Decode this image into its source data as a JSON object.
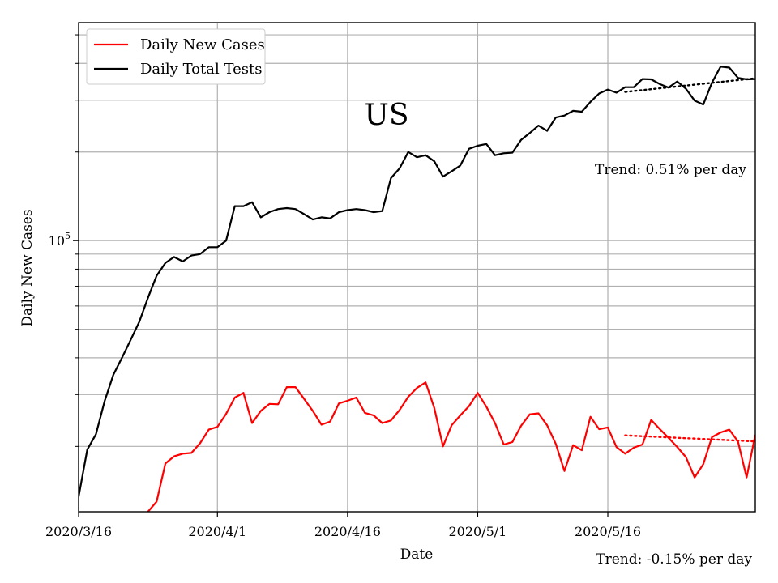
{
  "chart_data": {
    "type": "line",
    "title": "US",
    "xlabel": "Date",
    "ylabel": "Daily New Cases",
    "yscale": "log",
    "ylim": [
      12000,
      550000
    ],
    "x_ticks": [
      "2020/3/16",
      "2020/4/1",
      "2020/4/16",
      "2020/5/1",
      "2020/5/16"
    ],
    "y_tick_label": {
      "base": "10",
      "exp": "5",
      "value": 100000
    },
    "grid": true,
    "legend_position": "top-left",
    "x_start_day": 0,
    "x_end_day": 78,
    "series": [
      {
        "name": "Daily New Cases",
        "color": "#ff0000",
        "x": [
          8,
          9,
          10,
          11,
          12,
          13,
          14,
          15,
          16,
          17,
          18,
          19,
          20,
          21,
          22,
          23,
          24,
          25,
          26,
          27,
          28,
          29,
          30,
          31,
          32,
          33,
          34,
          35,
          36,
          37,
          38,
          39,
          40,
          41,
          42,
          43,
          44,
          45,
          46,
          47,
          48,
          49,
          50,
          51,
          52,
          53,
          54,
          55,
          56,
          57,
          58,
          59,
          60,
          61,
          62,
          63,
          64,
          65,
          66,
          67,
          68,
          69,
          70,
          71,
          72,
          73,
          74,
          75,
          76,
          77,
          78
        ],
        "y": [
          12000,
          13000,
          17500,
          18500,
          18900,
          19000,
          20500,
          22800,
          23300,
          25800,
          29300,
          30400,
          24000,
          26400,
          27900,
          27800,
          31800,
          31800,
          29000,
          26400,
          23700,
          24300,
          28000,
          28600,
          29300,
          26000,
          25500,
          24000,
          24500,
          26600,
          29500,
          31600,
          33000,
          27000,
          20000,
          23600,
          25500,
          27400,
          30400,
          27300,
          24000,
          20300,
          20700,
          23500,
          25700,
          25900,
          23600,
          20400,
          16500,
          20200,
          19400,
          25200,
          22900,
          23200,
          19900,
          18900,
          19800,
          20300,
          24600,
          22900,
          21400,
          19900,
          18400,
          15700,
          17400,
          21500,
          22300,
          22800,
          20800,
          15700,
          21900
        ]
      },
      {
        "name": "Daily Total Tests",
        "color": "#000000",
        "x": [
          0,
          1,
          2,
          3,
          4,
          5,
          6,
          7,
          8,
          9,
          10,
          11,
          12,
          13,
          14,
          15,
          16,
          17,
          18,
          19,
          20,
          21,
          22,
          23,
          24,
          25,
          26,
          27,
          28,
          29,
          30,
          31,
          32,
          33,
          34,
          35,
          36,
          37,
          38,
          39,
          40,
          41,
          42,
          43,
          44,
          45,
          46,
          47,
          48,
          49,
          50,
          51,
          52,
          53,
          54,
          55,
          56,
          57,
          58,
          59,
          60,
          61,
          62,
          63,
          64,
          65,
          66,
          67,
          68,
          69,
          70,
          71,
          72,
          73,
          74,
          75,
          76,
          77,
          78
        ],
        "y": [
          13500,
          19500,
          22000,
          28500,
          35000,
          40000,
          46000,
          53000,
          64000,
          76000,
          84000,
          88000,
          85000,
          89000,
          90000,
          95000,
          95000,
          100000,
          131000,
          131000,
          135000,
          120000,
          125000,
          128000,
          129000,
          128000,
          123000,
          118000,
          120000,
          119000,
          125000,
          127000,
          128000,
          127000,
          125000,
          126000,
          163000,
          176000,
          200000,
          192000,
          195000,
          186000,
          165000,
          172000,
          180000,
          205000,
          210000,
          213000,
          195000,
          198000,
          199000,
          220000,
          232000,
          246000,
          236000,
          262000,
          266000,
          276000,
          274000,
          296000,
          316000,
          326000,
          318000,
          332000,
          332000,
          354000,
          353000,
          340000,
          331000,
          347000,
          328000,
          299000,
          290000,
          344000,
          390000,
          387000,
          357000,
          353000,
          354000
        ]
      }
    ],
    "trend_lines": [
      {
        "series": "Daily New Cases",
        "color": "#ff0000",
        "x": [
          63,
          78
        ],
        "y": [
          21800,
          20800
        ],
        "style": "dotted"
      },
      {
        "series": "Daily Total Tests",
        "color": "#000000",
        "x": [
          63,
          78
        ],
        "y": [
          320000,
          356000
        ],
        "style": "dotted"
      }
    ],
    "annotations": [
      {
        "text": "Trend: 0.51% per day"
      },
      {
        "text": "Trend: -0.15% per day"
      }
    ]
  }
}
